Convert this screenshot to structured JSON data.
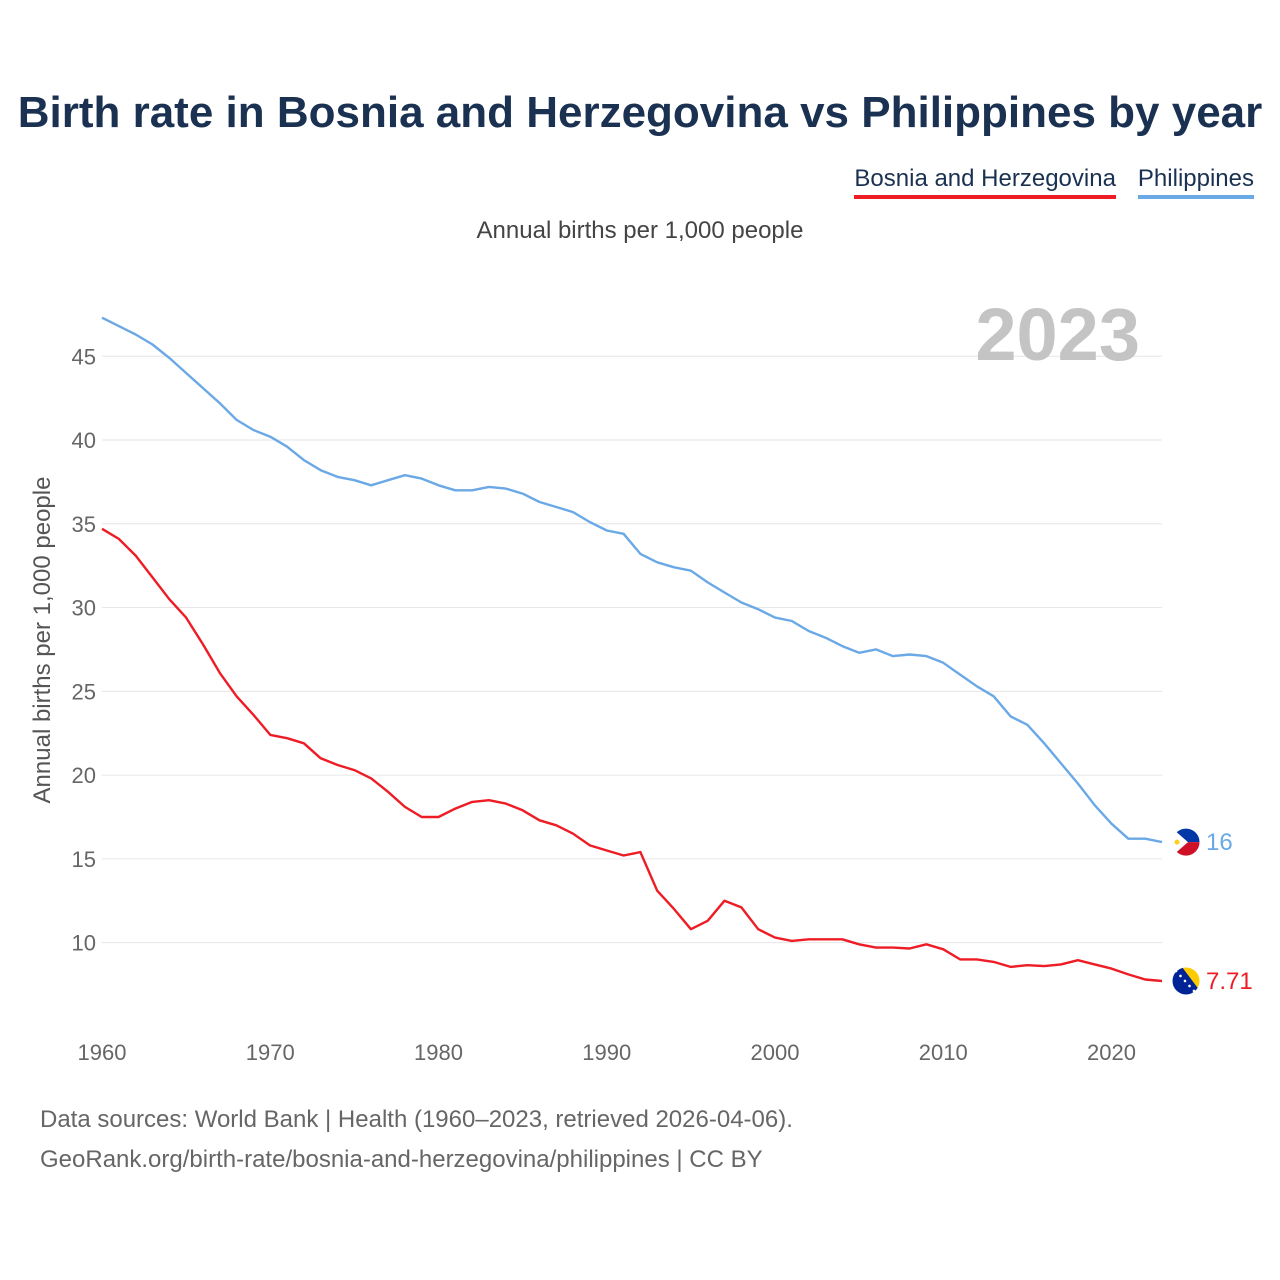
{
  "title": "Birth rate in Bosnia and Herzegovina vs Philippines by year",
  "legend": [
    {
      "name": "Bosnia and Herzegovina",
      "color": "#ee1c25"
    },
    {
      "name": "Philippines",
      "color": "#6aa9e6"
    }
  ],
  "subtitle": "Annual births per 1,000 people",
  "source": {
    "line1": "Data sources: World Bank | Health (1960–2023, retrieved 2026-04-06).",
    "line2": "GeoRank.org/birth-rate/bosnia-and-herzegovina/philippines | CC BY"
  },
  "chart_data": {
    "type": "line",
    "year_label": "2023",
    "ylabel": "Annual births per 1,000 people",
    "xlabel": "",
    "xlim": [
      1960,
      2023
    ],
    "ylim": [
      5.5,
      48
    ],
    "x_ticks": [
      1960,
      1970,
      1980,
      1990,
      2000,
      2010,
      2020
    ],
    "y_ticks": [
      10,
      15,
      20,
      25,
      30,
      35,
      40,
      45
    ],
    "grid": true,
    "x": [
      1960,
      1961,
      1962,
      1963,
      1964,
      1965,
      1966,
      1967,
      1968,
      1969,
      1970,
      1971,
      1972,
      1973,
      1974,
      1975,
      1976,
      1977,
      1978,
      1979,
      1980,
      1981,
      1982,
      1983,
      1984,
      1985,
      1986,
      1987,
      1988,
      1989,
      1990,
      1991,
      1992,
      1993,
      1994,
      1995,
      1996,
      1997,
      1998,
      1999,
      2000,
      2001,
      2002,
      2003,
      2004,
      2005,
      2006,
      2007,
      2008,
      2009,
      2010,
      2011,
      2012,
      2013,
      2014,
      2015,
      2016,
      2017,
      2018,
      2019,
      2020,
      2021,
      2022,
      2023
    ],
    "series": [
      {
        "name": "Philippines",
        "color": "#6aa9e6",
        "end_label": "16",
        "values": [
          47.3,
          46.8,
          46.3,
          45.7,
          44.9,
          44.0,
          43.1,
          42.2,
          41.2,
          40.6,
          40.2,
          39.6,
          38.8,
          38.2,
          37.8,
          37.6,
          37.3,
          37.6,
          37.9,
          37.7,
          37.3,
          37.0,
          37.0,
          37.2,
          37.1,
          36.8,
          36.3,
          36.0,
          35.7,
          35.1,
          34.6,
          34.4,
          33.2,
          32.7,
          32.4,
          32.2,
          31.5,
          30.9,
          30.3,
          29.9,
          29.4,
          29.2,
          28.6,
          28.2,
          27.7,
          27.3,
          27.5,
          27.1,
          27.2,
          27.1,
          26.7,
          26.0,
          25.3,
          24.7,
          23.5,
          23.0,
          21.9,
          20.7,
          19.5,
          18.2,
          17.1,
          16.2,
          16.2,
          16.0
        ]
      },
      {
        "name": "Bosnia and Herzegovina",
        "color": "#ee1c25",
        "end_label": "7.71",
        "values": [
          34.7,
          34.1,
          33.1,
          31.8,
          30.5,
          29.4,
          27.8,
          26.1,
          24.7,
          23.6,
          22.4,
          22.2,
          21.9,
          21.0,
          20.6,
          20.3,
          19.8,
          19.0,
          18.1,
          17.5,
          17.5,
          18.0,
          18.4,
          18.5,
          18.3,
          17.9,
          17.3,
          17.0,
          16.5,
          15.8,
          15.5,
          15.2,
          15.4,
          13.1,
          12.0,
          10.8,
          11.3,
          12.5,
          12.1,
          10.8,
          10.3,
          10.1,
          10.2,
          10.2,
          10.2,
          9.9,
          9.7,
          9.7,
          9.65,
          9.9,
          9.6,
          9.0,
          9.0,
          8.85,
          8.55,
          8.65,
          8.6,
          8.7,
          8.95,
          8.7,
          8.45,
          8.1,
          7.8,
          7.71
        ]
      }
    ]
  }
}
